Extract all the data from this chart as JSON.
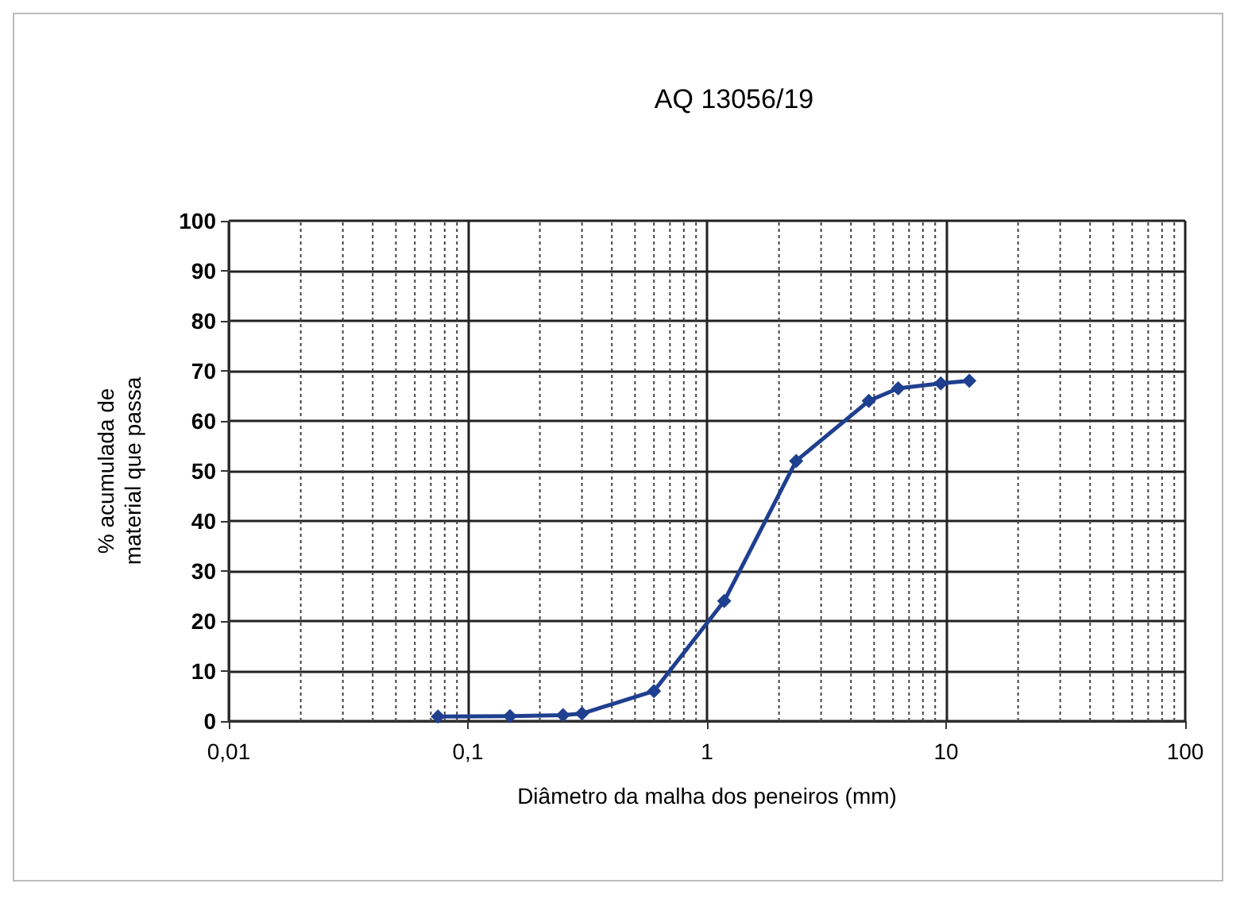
{
  "chart_data": {
    "type": "line",
    "title": "AQ 13056/19",
    "xlabel": "Diâmetro da malha dos peneiros (mm)",
    "ylabel": "% acumulada de\nmaterial que passa",
    "x": [
      0.075,
      0.15,
      0.25,
      0.3,
      0.6,
      1.18,
      2.36,
      4.75,
      6.3,
      9.5,
      12.5
    ],
    "series": [
      {
        "color": "#1f3f8f",
        "values": [
          0.9,
          1,
          1.2,
          1.5,
          6,
          24,
          52,
          64,
          66.5,
          67.5,
          68
        ]
      }
    ],
    "log": "x",
    "xlim": [
      0.01,
      100
    ],
    "xticks": [
      {
        "value": 0.01,
        "label": "0,01"
      },
      {
        "value": 0.1,
        "label": "0,1"
      },
      1,
      10,
      100
    ],
    "ylim": [
      0,
      100
    ],
    "yticks": [
      0,
      10,
      20,
      30,
      40,
      50,
      60,
      70,
      80,
      90,
      100
    ],
    "grid": true,
    "marker": "diamond",
    "line_style": "solid"
  }
}
